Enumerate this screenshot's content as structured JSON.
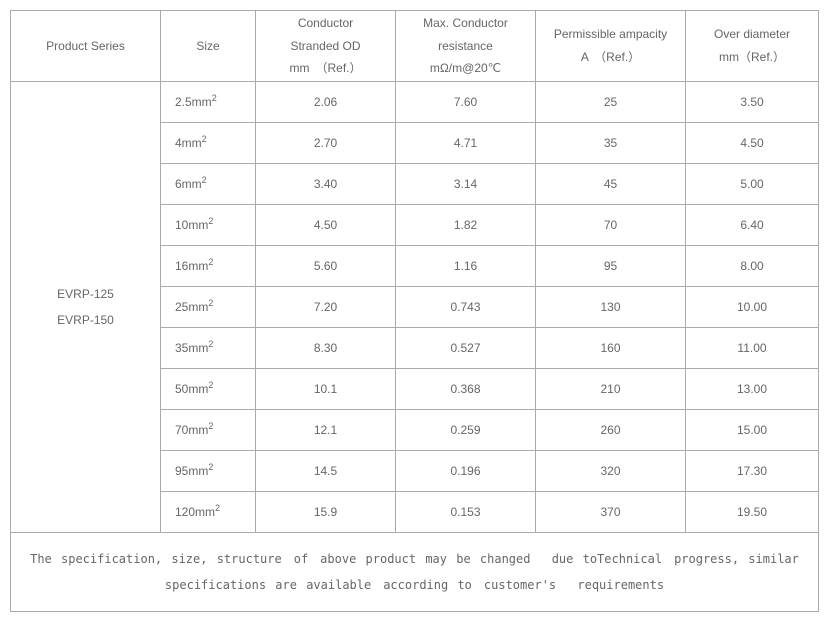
{
  "columns": [
    {
      "label": "Product Series"
    },
    {
      "label": "Size"
    },
    {
      "label_line1": "Conductor",
      "label_line2": "Stranded OD",
      "label_line3": "mm　（Ref.）"
    },
    {
      "label_line1": "Max. Conductor",
      "label_line2": "resistance",
      "label_line3": "mΩ/m@20℃"
    },
    {
      "label_line1": "Permissible ampacity",
      "label_line2": "A　（Ref.）"
    },
    {
      "label_line1": "Over diameter",
      "label_line2": "mm（Ref.）"
    }
  ],
  "series": [
    "EVRP-125",
    "EVRP-150"
  ],
  "rows": [
    {
      "size_val": "2.5mm",
      "size_exp": "2",
      "od": "2.06",
      "res": "7.60",
      "amp": "25",
      "over": "3.50"
    },
    {
      "size_val": "4mm",
      "size_exp": "2",
      "od": "2.70",
      "res": "4.71",
      "amp": "35",
      "over": "4.50"
    },
    {
      "size_val": "6mm",
      "size_exp": "2",
      "od": "3.40",
      "res": "3.14",
      "amp": "45",
      "over": "5.00"
    },
    {
      "size_val": "10mm",
      "size_exp": "2",
      "od": "4.50",
      "res": "1.82",
      "amp": "70",
      "over": "6.40"
    },
    {
      "size_val": "16mm",
      "size_exp": "2",
      "od": "5.60",
      "res": "1.16",
      "amp": "95",
      "over": "8.00"
    },
    {
      "size_val": "25mm",
      "size_exp": "2",
      "od": "7.20",
      "res": "0.743",
      "amp": "130",
      "over": "10.00"
    },
    {
      "size_val": "35mm",
      "size_exp": "2",
      "od": "8.30",
      "res": "0.527",
      "amp": "160",
      "over": "11.00"
    },
    {
      "size_val": "50mm",
      "size_exp": "2",
      "od": "10.1",
      "res": "0.368",
      "amp": "210",
      "over": "13.00"
    },
    {
      "size_val": "70mm",
      "size_exp": "2",
      "od": "12.1",
      "res": "0.259",
      "amp": "260",
      "over": "15.00"
    },
    {
      "size_val": "95mm",
      "size_exp": "2",
      "od": "14.5",
      "res": "0.196",
      "amp": "320",
      "over": "17.30"
    },
    {
      "size_val": "120mm",
      "size_exp": "2",
      "od": "15.9",
      "res": "0.153",
      "amp": "370",
      "over": "19.50"
    }
  ],
  "footer_line1": "The specification, size, structure　of　above product may be changed 　due toTechnical　progress, similar",
  "footer_line2": "specifications are available　according to　customer's　 requirements",
  "colors": {
    "border": "#aaaaaa",
    "text": "#666666",
    "background": "#ffffff"
  },
  "font_sizes": {
    "body": 12,
    "sup": 9
  }
}
